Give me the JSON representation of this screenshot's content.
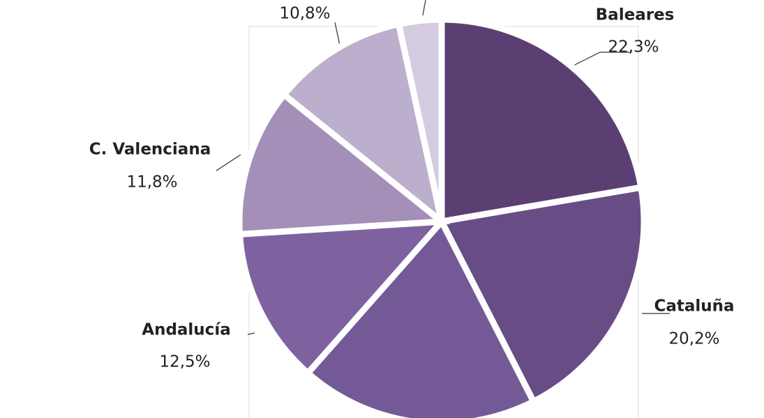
{
  "chart_data": {
    "type": "pie",
    "categories": [
      "Baleares",
      "Cataluña",
      null,
      "Andalucía",
      "C. Valenciana",
      null,
      null
    ],
    "values": [
      22.3,
      20.2,
      19.0,
      12.5,
      11.8,
      10.8,
      3.4
    ],
    "value_labels": [
      "22,3%",
      "20,2%",
      null,
      "12,5%",
      "11,8%",
      "10,8%",
      null
    ],
    "colors": [
      "#5b3f73",
      "#674c85",
      "#735a97",
      "#7e62a0",
      "#a48fb8",
      "#bcaecd",
      "#d5cbe0"
    ]
  }
}
